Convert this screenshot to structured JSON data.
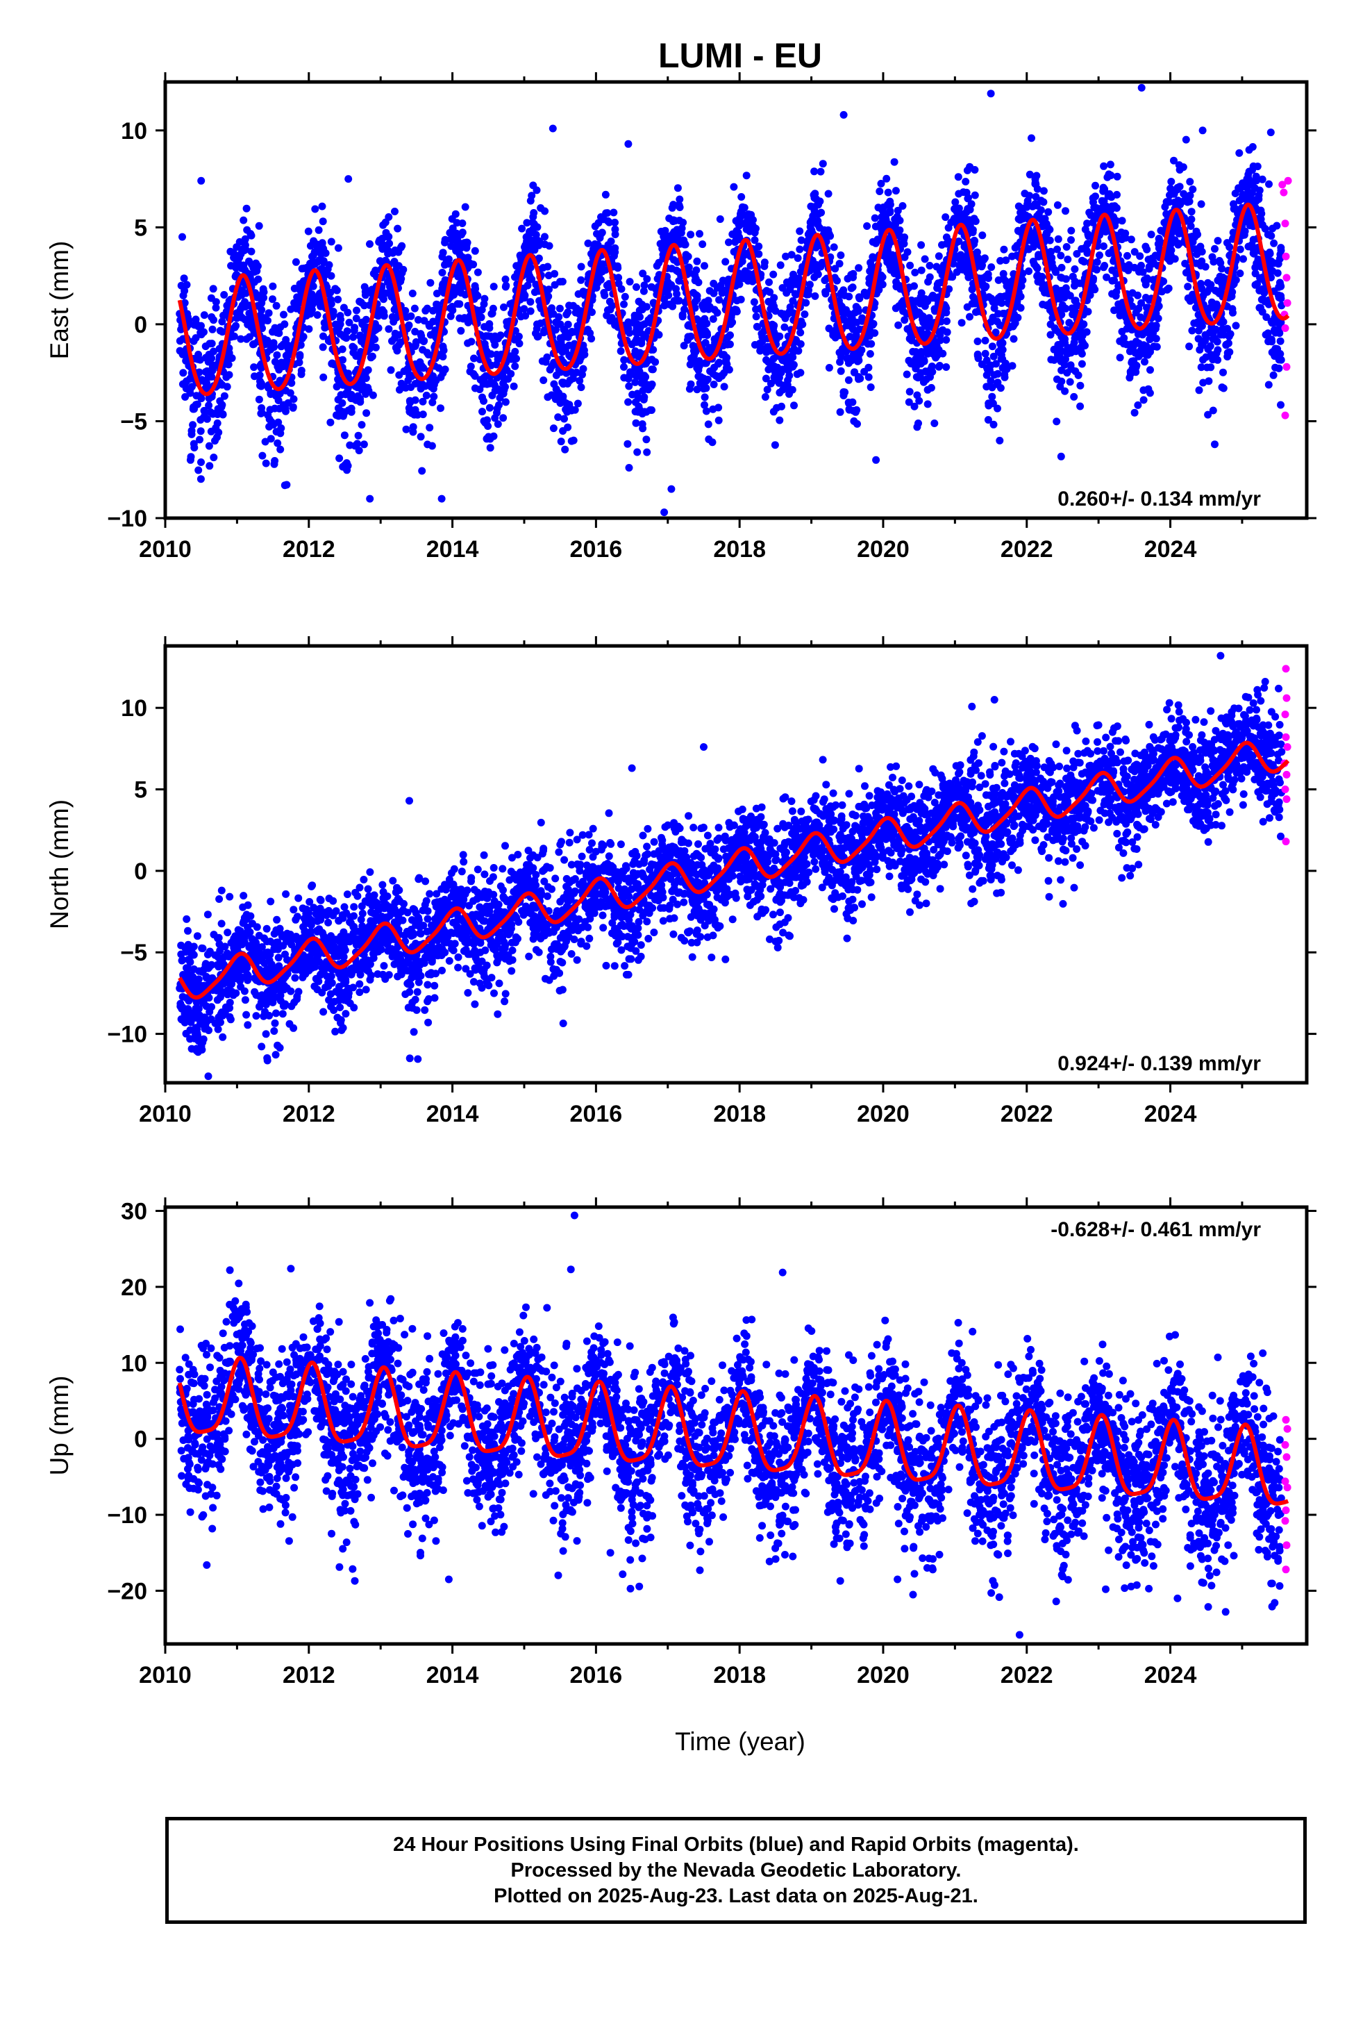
{
  "title": "LUMI - EU",
  "xlabel": "Time (year)",
  "footer": {
    "line1": "24 Hour Positions Using Final Orbits (blue) and Rapid Orbits (magenta).",
    "line2": "Processed by the Nevada Geodetic Laboratory.",
    "line3": "Plotted on 2025-Aug-23. Last data on 2025-Aug-21."
  },
  "colors": {
    "final": "#0000ff",
    "rapid": "#ff00ff",
    "model": "#ff0000",
    "axes": "#000000"
  },
  "chart_data": [
    {
      "type": "scatter",
      "name": "east",
      "ylabel": "East (mm)",
      "xlim": [
        2010.0,
        2025.9
      ],
      "ylim": [
        -10,
        12.5
      ],
      "yticks": [
        -10,
        -5,
        0,
        5,
        10
      ],
      "xticks": [
        2010,
        2012,
        2014,
        2016,
        2018,
        2020,
        2022,
        2024
      ],
      "rate_label": "0.260+/- 0.134 mm/yr",
      "rate_label_pos": "bottom-right",
      "data_start": 2010.2,
      "data_end": 2025.64,
      "rapid_start": 2025.55,
      "model": {
        "offset": -1.0,
        "rate": 0.26,
        "annual_amp": 3.0,
        "annual_phase": 1.06,
        "semi_amp": 0.3,
        "semi_phase": 0.5
      },
      "scatter_sigma": 1.6,
      "n_points": 4500,
      "outliers": [
        [
          2010.5,
          7.4
        ],
        [
          2012.55,
          7.5
        ],
        [
          2015.4,
          10.1
        ],
        [
          2016.45,
          9.3
        ],
        [
          2019.45,
          10.8
        ],
        [
          2021.5,
          11.9
        ],
        [
          2023.6,
          12.2
        ],
        [
          2024.45,
          10.0
        ],
        [
          2025.4,
          9.9
        ],
        [
          2016.95,
          -9.7
        ],
        [
          2017.05,
          -8.5
        ],
        [
          2013.85,
          -9.0
        ],
        [
          2012.85,
          -9.0
        ],
        [
          2019.9,
          -7.0
        ]
      ],
      "rapid_points": [
        [
          2025.56,
          7.2
        ],
        [
          2025.58,
          6.8
        ],
        [
          2025.6,
          5.2
        ],
        [
          2025.61,
          3.5
        ],
        [
          2025.62,
          2.4
        ],
        [
          2025.63,
          1.1
        ],
        [
          2025.6,
          -0.2
        ],
        [
          2025.62,
          -2.2
        ],
        [
          2025.6,
          -4.7
        ],
        [
          2025.64,
          7.4
        ],
        [
          2025.59,
          0.5
        ]
      ]
    },
    {
      "type": "scatter",
      "name": "north",
      "ylabel": "North (mm)",
      "xlim": [
        2010.0,
        2025.9
      ],
      "ylim": [
        -13,
        13.8
      ],
      "yticks": [
        -10,
        -5,
        0,
        5,
        10
      ],
      "xticks": [
        2010,
        2012,
        2014,
        2016,
        2018,
        2020,
        2022,
        2024
      ],
      "rate_label": "0.924+/- 0.139 mm/yr",
      "rate_label_pos": "bottom-right",
      "data_start": 2010.2,
      "data_end": 2025.64,
      "rapid_start": 2025.55,
      "model": {
        "offset": -7.0,
        "rate": 0.924,
        "annual_amp": 1.0,
        "annual_phase": 1.5,
        "semi_amp": 0.2,
        "semi_phase": 0.3
      },
      "scatter_sigma": 1.5,
      "n_points": 4500,
      "outliers": [
        [
          2010.6,
          -12.6
        ],
        [
          2013.4,
          4.3
        ],
        [
          2016.5,
          6.3
        ],
        [
          2017.5,
          7.6
        ],
        [
          2021.55,
          10.5
        ],
        [
          2024.7,
          13.2
        ],
        [
          2022.7,
          8.6
        ],
        [
          2010.8,
          -10.2
        ],
        [
          2018.7,
          -4.0
        ]
      ],
      "rapid_points": [
        [
          2025.61,
          12.4
        ],
        [
          2025.62,
          10.6
        ],
        [
          2025.6,
          9.6
        ],
        [
          2025.61,
          8.2
        ],
        [
          2025.63,
          7.6
        ],
        [
          2025.59,
          6.6
        ],
        [
          2025.62,
          5.9
        ],
        [
          2025.6,
          5.0
        ],
        [
          2025.62,
          4.4
        ],
        [
          2025.61,
          1.8
        ]
      ]
    },
    {
      "type": "scatter",
      "name": "up",
      "ylabel": "Up (mm)",
      "xlim": [
        2010.0,
        2025.9
      ],
      "ylim": [
        -27,
        30.5
      ],
      "yticks": [
        -20,
        -10,
        0,
        10,
        20,
        30
      ],
      "xticks": [
        2010,
        2012,
        2014,
        2016,
        2018,
        2020,
        2022,
        2024
      ],
      "rate_label": "-0.628+/- 0.461 mm/yr",
      "rate_label_pos": "top-right",
      "data_start": 2010.2,
      "data_end": 2025.64,
      "rapid_start": 2025.55,
      "model": {
        "offset": 5.0,
        "rate": -0.628,
        "annual_amp": 5.0,
        "annual_phase": 1.32,
        "semi_amp": 1.2,
        "semi_phase": 0.9
      },
      "scatter_sigma": 4.5,
      "n_points": 4500,
      "outliers": [
        [
          2015.7,
          29.4
        ],
        [
          2015.65,
          22.3
        ],
        [
          2010.9,
          22.2
        ],
        [
          2011.75,
          22.4
        ],
        [
          2018.6,
          21.9
        ],
        [
          2013.95,
          -18.5
        ],
        [
          2021.9,
          -25.8
        ],
        [
          2020.2,
          -18.5
        ],
        [
          2023.1,
          -19.8
        ],
        [
          2024.1,
          -21.0
        ],
        [
          2016.2,
          -15.0
        ]
      ],
      "rapid_points": [
        [
          2025.61,
          2.5
        ],
        [
          2025.63,
          1.3
        ],
        [
          2025.6,
          -0.8
        ],
        [
          2025.62,
          -2.4
        ],
        [
          2025.6,
          -5.6
        ],
        [
          2025.63,
          -6.4
        ],
        [
          2025.61,
          -9.4
        ],
        [
          2025.6,
          -10.8
        ],
        [
          2025.62,
          -14.0
        ],
        [
          2025.61,
          -17.2
        ]
      ]
    }
  ]
}
